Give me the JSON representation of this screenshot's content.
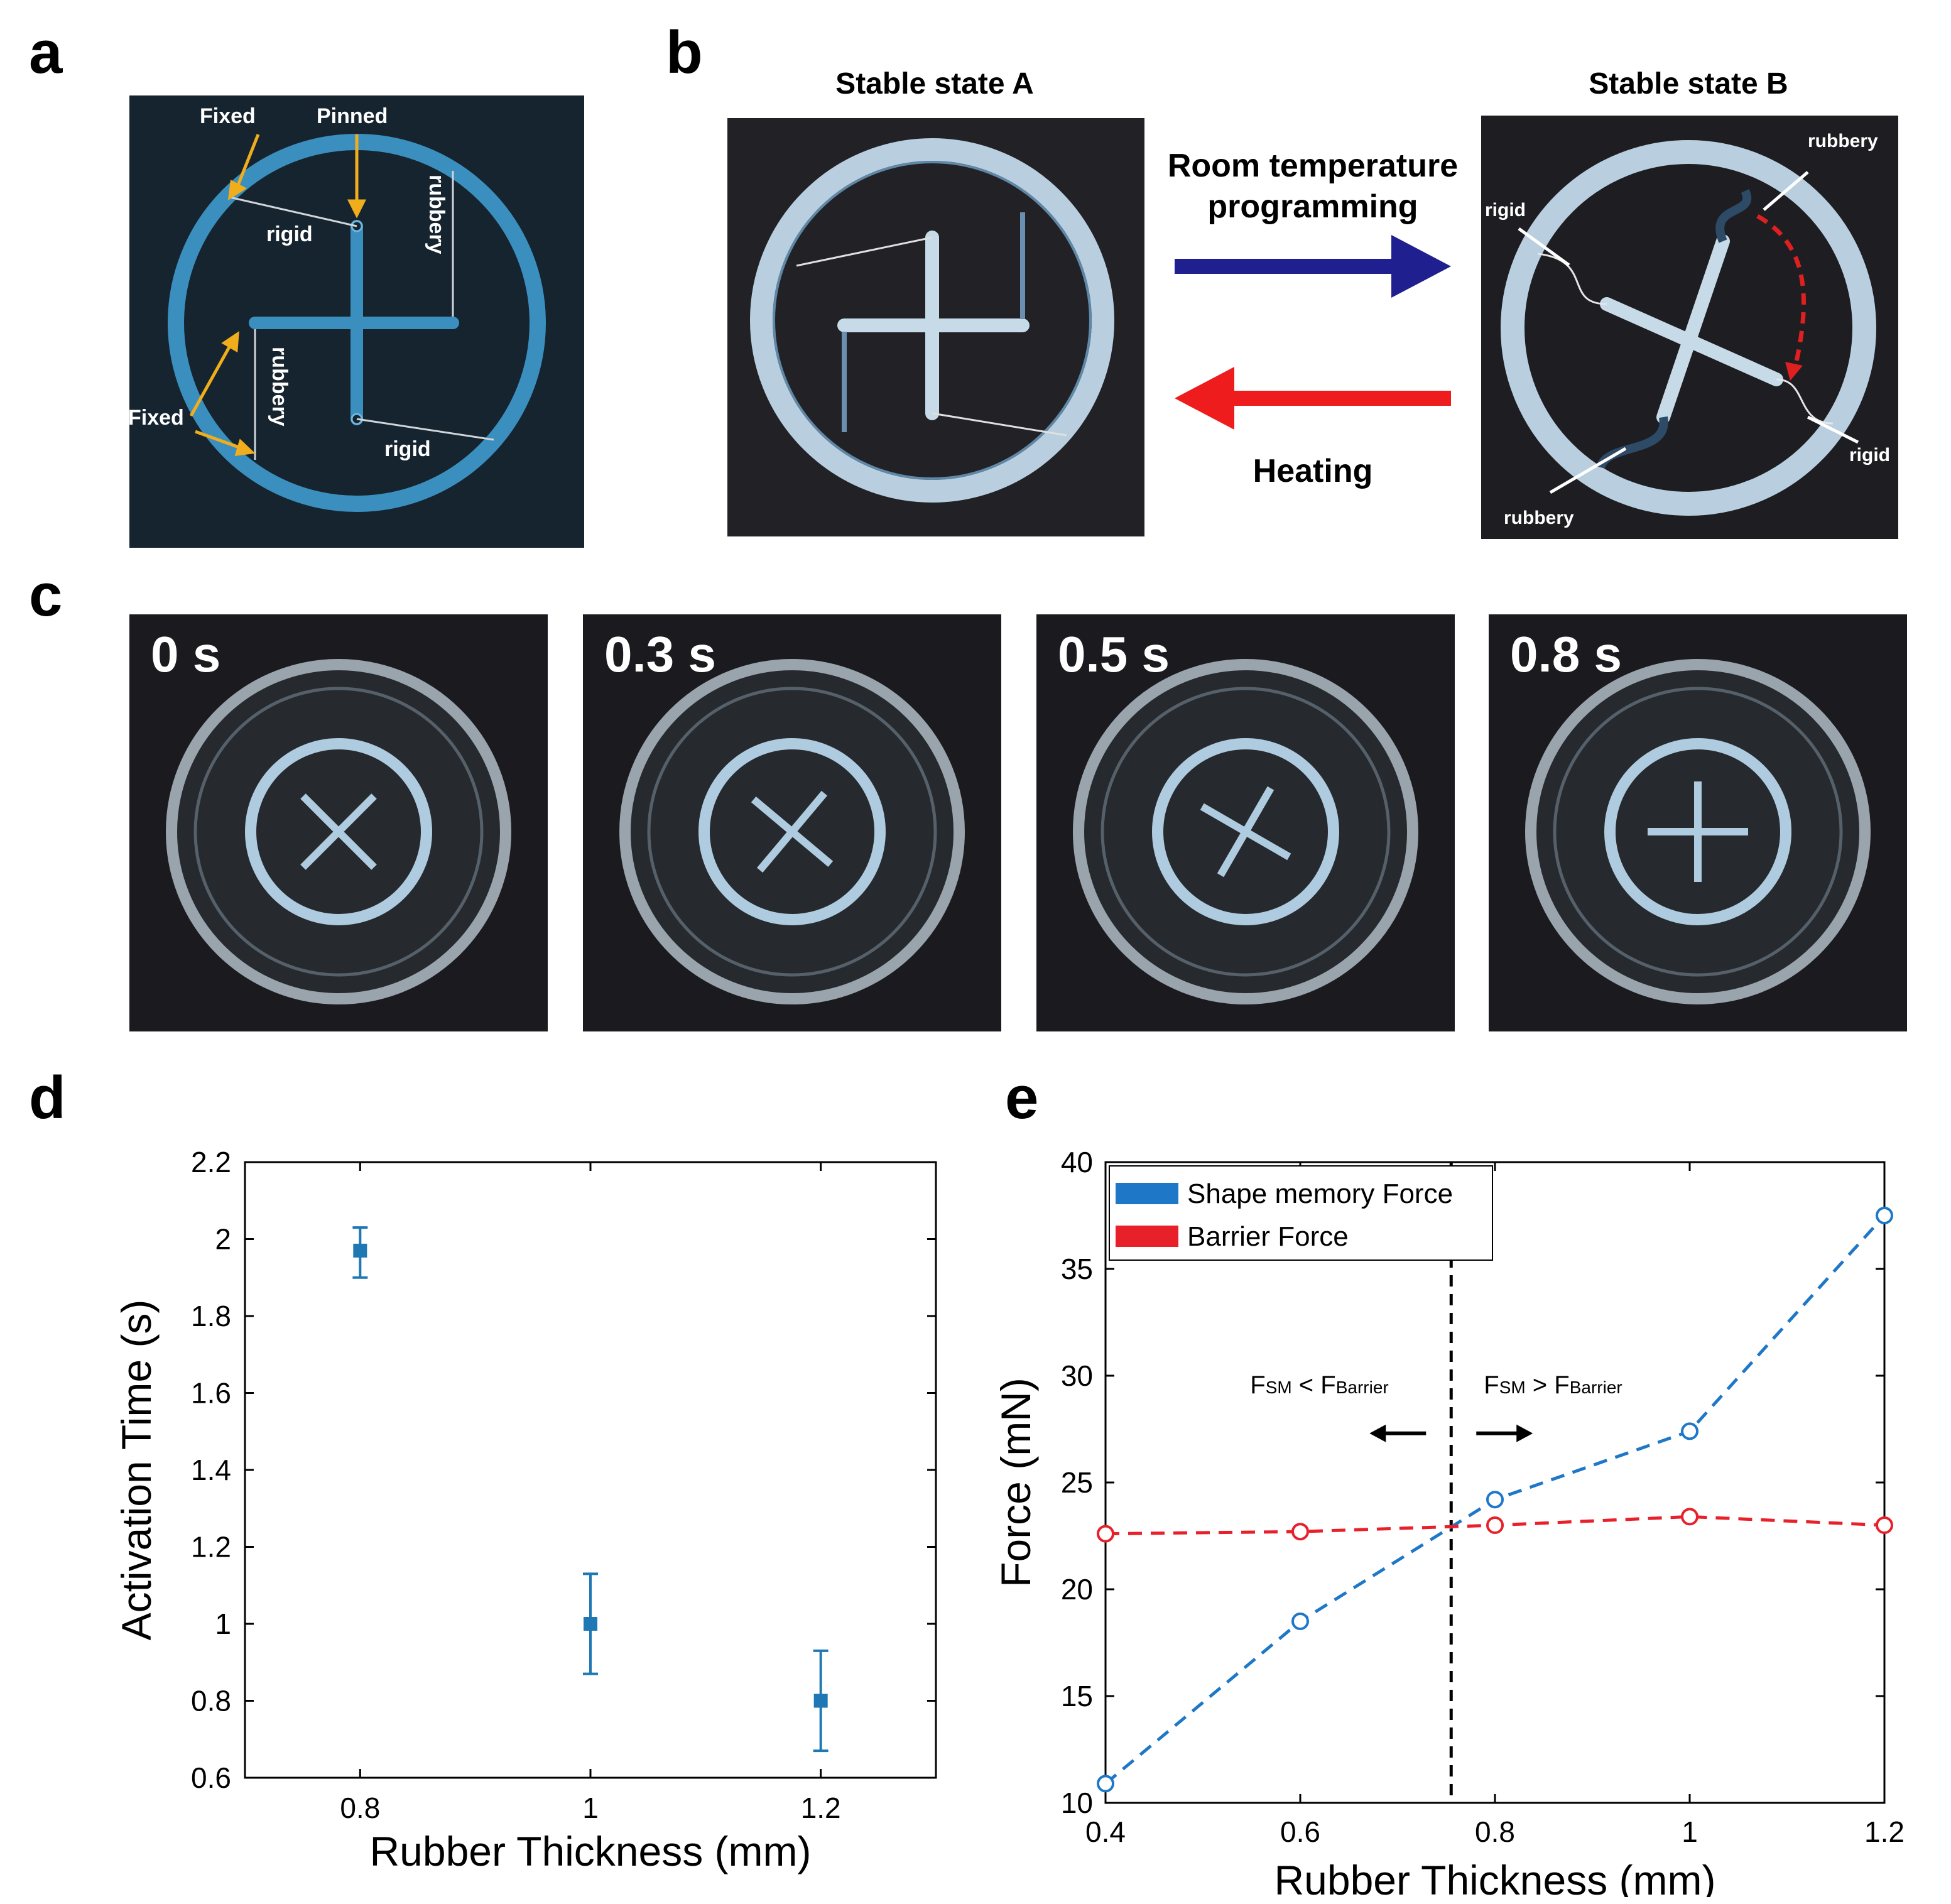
{
  "panels": {
    "a": "a",
    "b": "b",
    "c": "c",
    "d": "d",
    "e": "e"
  },
  "panel_a": {
    "labels": {
      "fixed_top": "Fixed",
      "pinned": "Pinned",
      "rigid_top": "rigid",
      "rubbery_right": "rubbery",
      "fixed_left": "Fixed",
      "rubbery_left": "rubbery",
      "rigid_bottom": "rigid"
    },
    "colors": {
      "background": "#16242f",
      "ring": "#3a8fbf",
      "arrow": "#f0ad1c"
    }
  },
  "panel_b": {
    "state_a_title": "Stable state A",
    "state_b_title": "Stable state B",
    "forward_label_line1": "Room temperature",
    "forward_label_line2": "programming",
    "reverse_label": "Heating",
    "labels_b": {
      "rubbery_top": "rubbery",
      "rigid_left": "rigid",
      "rigid_right": "rigid",
      "rubbery_bottom": "rubbery"
    },
    "colors": {
      "forward_arrow": "#1f1f8f",
      "reverse_arrow": "#ee1c1c",
      "dash_arrow": "#e02020"
    }
  },
  "panel_c": {
    "frames": [
      {
        "time": "0 s",
        "arm_angle": 45
      },
      {
        "time": "0.3 s",
        "arm_angle": 40
      },
      {
        "time": "0.5 s",
        "arm_angle": 30
      },
      {
        "time": "0.8 s",
        "arm_angle": 0
      }
    ]
  },
  "chart_data": [
    {
      "panel": "d",
      "type": "scatter",
      "title": "",
      "xlabel": "Rubber Thickness (mm)",
      "ylabel": "Activation Time (s)",
      "x": [
        0.8,
        1.0,
        1.2
      ],
      "y": [
        1.97,
        1.0,
        0.8
      ],
      "error_low": [
        1.9,
        0.87,
        0.67
      ],
      "error_high": [
        2.03,
        1.13,
        0.93
      ],
      "xlim": [
        0.7,
        1.3
      ],
      "ylim": [
        0.6,
        2.2
      ],
      "xticks": [
        "0.8",
        "1",
        "1.2"
      ],
      "yticks": [
        "0.6",
        "0.8",
        "1",
        "1.2",
        "1.4",
        "1.6",
        "1.8",
        "2",
        "2.2"
      ],
      "color": "#1f77b4",
      "grid": false
    },
    {
      "panel": "e",
      "type": "line",
      "title": "",
      "xlabel": "Rubber Thickness (mm)",
      "ylabel": "Force (mN)",
      "x": [
        0.4,
        0.6,
        0.8,
        1.0,
        1.2
      ],
      "xlim": [
        0.4,
        1.2
      ],
      "ylim": [
        10,
        40
      ],
      "xticks": [
        "0.4",
        "0.6",
        "0.8",
        "1",
        "1.2"
      ],
      "yticks": [
        "10",
        "15",
        "20",
        "25",
        "30",
        "35",
        "40"
      ],
      "series": [
        {
          "name": "Shape memory Force",
          "values": [
            10.9,
            18.5,
            24.2,
            27.4,
            37.5
          ],
          "color": "#1f77c8"
        },
        {
          "name": "Barrier Force",
          "values": [
            22.6,
            22.7,
            23.0,
            23.4,
            23.0
          ],
          "color": "#e8202a"
        }
      ],
      "legend": "top-left",
      "threshold_x": 0.755,
      "annotation_left": {
        "main": "F",
        "sub1": "SM",
        "op": " < F",
        "sub2": "Barrier"
      },
      "annotation_right": {
        "main": "F",
        "sub1": "SM",
        "op": " > F",
        "sub2": "Barrier"
      },
      "grid": false
    }
  ]
}
